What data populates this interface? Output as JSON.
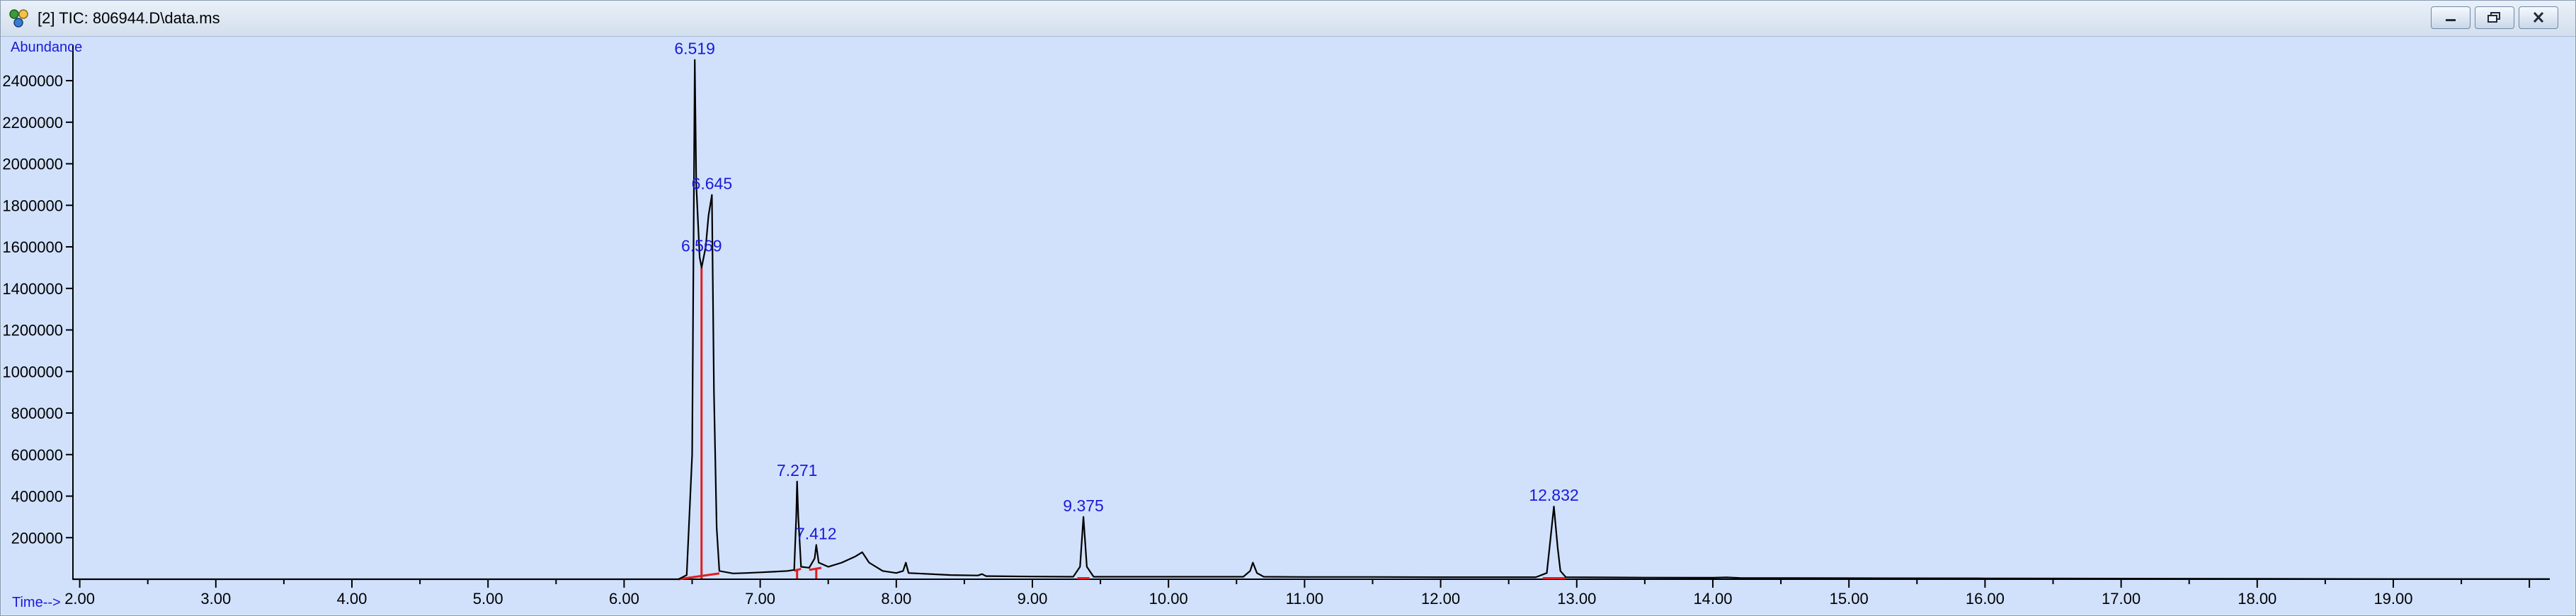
{
  "window": {
    "title": "[2] TIC: 806944.D\\data.ms",
    "icons": {
      "app": "chromatogram-app-icon",
      "minimize": "minimize-icon",
      "restore": "restore-icon",
      "close": "close-icon"
    }
  },
  "colors": {
    "plot_bg": "#d1e1fb",
    "trace": "#000000",
    "baseline": "#e01e1e",
    "label": "#1a1ad9"
  },
  "chart_data": {
    "type": "line",
    "ylabel": "Abundance",
    "xlabel": "Time-->",
    "xlim": [
      1.95,
      20.15
    ],
    "ylim": [
      0,
      2550000
    ],
    "x_ticks": [
      2.0,
      3.0,
      4.0,
      5.0,
      6.0,
      7.0,
      8.0,
      9.0,
      10.0,
      11.0,
      12.0,
      13.0,
      14.0,
      15.0,
      16.0,
      17.0,
      18.0,
      19.0
    ],
    "x_tick_labels": [
      "2.00",
      "3.00",
      "4.00",
      "5.00",
      "6.00",
      "7.00",
      "8.00",
      "9.00",
      "10.00",
      "11.00",
      "12.00",
      "13.00",
      "14.00",
      "15.00",
      "16.00",
      "17.00",
      "18.00",
      "19.00"
    ],
    "y_ticks": [
      200000,
      400000,
      600000,
      800000,
      1000000,
      1200000,
      1400000,
      1600000,
      1800000,
      2000000,
      2200000,
      2400000
    ],
    "y_tick_labels": [
      "200000",
      "400000",
      "600000",
      "800000",
      "1000000",
      "1200000",
      "1400000",
      "1600000",
      "1800000",
      "2000000",
      "2200000",
      "2400000"
    ],
    "grid": false,
    "series": [
      {
        "values": [
          [
            1.95,
            0
          ],
          [
            6.4,
            0
          ],
          [
            6.46,
            20000
          ],
          [
            6.5,
            600000
          ],
          [
            6.519,
            2500000
          ],
          [
            6.53,
            1900000
          ],
          [
            6.555,
            1550000
          ],
          [
            6.569,
            1500000
          ],
          [
            6.585,
            1550000
          ],
          [
            6.6,
            1600000
          ],
          [
            6.62,
            1750000
          ],
          [
            6.645,
            1850000
          ],
          [
            6.66,
            900000
          ],
          [
            6.68,
            250000
          ],
          [
            6.7,
            40000
          ],
          [
            6.8,
            28000
          ],
          [
            6.9,
            30000
          ],
          [
            7.0,
            33000
          ],
          [
            7.1,
            36000
          ],
          [
            7.2,
            40000
          ],
          [
            7.25,
            45000
          ],
          [
            7.265,
            300000
          ],
          [
            7.271,
            470000
          ],
          [
            7.28,
            300000
          ],
          [
            7.3,
            60000
          ],
          [
            7.36,
            55000
          ],
          [
            7.4,
            100000
          ],
          [
            7.412,
            165000
          ],
          [
            7.43,
            80000
          ],
          [
            7.5,
            60000
          ],
          [
            7.6,
            80000
          ],
          [
            7.7,
            110000
          ],
          [
            7.75,
            130000
          ],
          [
            7.8,
            80000
          ],
          [
            7.9,
            40000
          ],
          [
            8.0,
            30000
          ],
          [
            8.05,
            40000
          ],
          [
            8.07,
            80000
          ],
          [
            8.09,
            30000
          ],
          [
            8.4,
            20000
          ],
          [
            8.6,
            18000
          ],
          [
            8.63,
            25000
          ],
          [
            8.66,
            15000
          ],
          [
            9.0,
            13000
          ],
          [
            9.3,
            12000
          ],
          [
            9.35,
            60000
          ],
          [
            9.375,
            300000
          ],
          [
            9.4,
            60000
          ],
          [
            9.45,
            12000
          ],
          [
            10.0,
            12000
          ],
          [
            10.55,
            12000
          ],
          [
            10.6,
            40000
          ],
          [
            10.62,
            80000
          ],
          [
            10.65,
            30000
          ],
          [
            10.7,
            12000
          ],
          [
            11.0,
            11000
          ],
          [
            11.5,
            11000
          ],
          [
            12.0,
            10000
          ],
          [
            12.5,
            10000
          ],
          [
            12.7,
            10000
          ],
          [
            12.78,
            30000
          ],
          [
            12.8,
            150000
          ],
          [
            12.832,
            350000
          ],
          [
            12.86,
            150000
          ],
          [
            12.88,
            40000
          ],
          [
            12.92,
            10000
          ],
          [
            13.5,
            8000
          ],
          [
            14.0,
            7000
          ],
          [
            14.1,
            9000
          ],
          [
            14.2,
            6000
          ],
          [
            15.0,
            5000
          ],
          [
            16.0,
            4000
          ],
          [
            17.0,
            3000
          ],
          [
            18.0,
            2000
          ],
          [
            19.0,
            1000
          ],
          [
            20.15,
            1000
          ]
        ]
      }
    ],
    "baselines": [
      {
        "x": [
          6.4,
          6.7
        ],
        "y": [
          0,
          28000
        ]
      },
      {
        "x": [
          7.25,
          7.3
        ],
        "y": [
          40000,
          50000
        ]
      },
      {
        "x": [
          7.36,
          7.45
        ],
        "y": [
          45000,
          55000
        ]
      },
      {
        "x": [
          9.33,
          9.42
        ],
        "y": [
          5000,
          5000
        ]
      },
      {
        "x": [
          12.75,
          12.92
        ],
        "y": [
          5000,
          5000
        ]
      }
    ],
    "integration_markers": [
      {
        "x": 6.569,
        "y": 1500000
      },
      {
        "x": 7.271,
        "y": 50000
      },
      {
        "x": 7.412,
        "y": 55000
      }
    ],
    "peaks": [
      {
        "label": "6.519",
        "x": 6.519,
        "y": 2500000
      },
      {
        "label": "6.645",
        "x": 6.645,
        "y": 1850000
      },
      {
        "label": "6.569",
        "x": 6.569,
        "y": 1550000
      },
      {
        "label": "7.271",
        "x": 7.271,
        "y": 470000
      },
      {
        "label": "7.412",
        "x": 7.412,
        "y": 165000
      },
      {
        "label": "9.375",
        "x": 9.375,
        "y": 300000
      },
      {
        "label": "12.832",
        "x": 12.832,
        "y": 350000
      }
    ]
  }
}
